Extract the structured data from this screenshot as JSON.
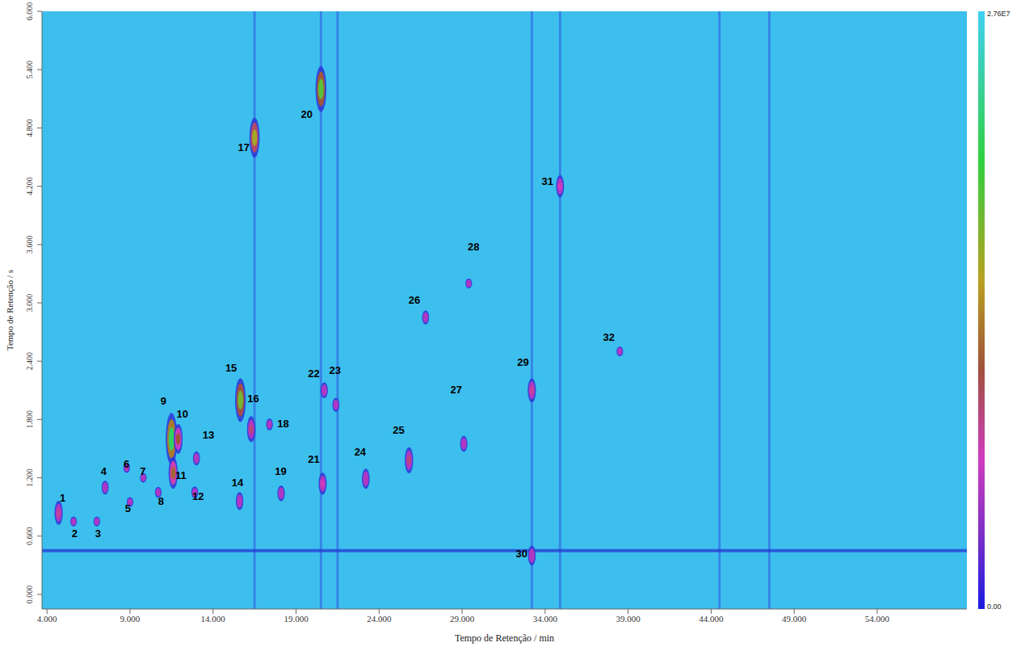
{
  "chart_data": {
    "type": "scatter",
    "x_label": "Tempo de Retenção / min",
    "y_label": "Tempo de Retenção / s",
    "xlim": [
      3.7,
      59.4
    ],
    "ylim": [
      -0.15,
      6.0
    ],
    "xticks": [
      {
        "value": 4,
        "label": "4.000"
      },
      {
        "value": 9,
        "label": "9.000"
      },
      {
        "value": 14,
        "label": "14.000"
      },
      {
        "value": 19,
        "label": "19.000"
      },
      {
        "value": 24,
        "label": "24.000"
      },
      {
        "value": 29,
        "label": "29.000"
      },
      {
        "value": 34,
        "label": "34.000"
      },
      {
        "value": 39,
        "label": "39.000"
      },
      {
        "value": 44,
        "label": "44.000"
      },
      {
        "value": 49,
        "label": "49.000"
      },
      {
        "value": 54,
        "label": "54.000"
      }
    ],
    "yticks": [
      {
        "value": 0,
        "label": "0.000"
      },
      {
        "value": 0.6,
        "label": "0.600"
      },
      {
        "value": 1.2,
        "label": "1.200"
      },
      {
        "value": 1.8,
        "label": "1.800"
      },
      {
        "value": 2.4,
        "label": "2.400"
      },
      {
        "value": 3.0,
        "label": "3.000"
      },
      {
        "value": 3.6,
        "label": "3.600"
      },
      {
        "value": 4.2,
        "label": "4.200"
      },
      {
        "value": 4.8,
        "label": "4.800"
      },
      {
        "value": 5.4,
        "label": "5.400"
      },
      {
        "value": 6.0,
        "label": "6.000"
      }
    ],
    "grid": false,
    "peaks": [
      {
        "label": "1",
        "x": 4.7,
        "y": 0.84,
        "intensity": 8000000,
        "label_x": 4.95,
        "label_y": 0.98
      },
      {
        "label": "2",
        "x": 5.6,
        "y": 0.75,
        "intensity": 1000000,
        "label_x": 5.66,
        "label_y": 0.62
      },
      {
        "label": "3",
        "x": 7.0,
        "y": 0.75,
        "intensity": 1000000,
        "label_x": 7.08,
        "label_y": 0.62
      },
      {
        "label": "4",
        "x": 7.5,
        "y": 1.1,
        "intensity": 3000000,
        "label_x": 7.41,
        "label_y": 1.26
      },
      {
        "label": "5",
        "x": 9.0,
        "y": 0.95,
        "intensity": 1000000,
        "label_x": 8.88,
        "label_y": 0.88
      },
      {
        "label": "6",
        "x": 8.8,
        "y": 1.3,
        "intensity": 800000,
        "label_x": 8.79,
        "label_y": 1.33
      },
      {
        "label": "7",
        "x": 9.8,
        "y": 1.2,
        "intensity": 800000,
        "label_x": 9.78,
        "label_y": 1.26
      },
      {
        "label": "8",
        "x": 10.7,
        "y": 1.05,
        "intensity": 1500000,
        "label_x": 10.87,
        "label_y": 0.95
      },
      {
        "label": "9",
        "x": 11.5,
        "y": 1.6,
        "intensity": 22000000,
        "label_x": 11.01,
        "label_y": 1.98
      },
      {
        "label": "10",
        "x": 11.9,
        "y": 1.6,
        "intensity": 11000000,
        "label_x": 12.15,
        "label_y": 1.85
      },
      {
        "label": "11",
        "x": 11.6,
        "y": 1.25,
        "intensity": 12000000,
        "label_x": 12.06,
        "label_y": 1.22
      },
      {
        "label": "12",
        "x": 12.9,
        "y": 1.05,
        "intensity": 2000000,
        "label_x": 13.1,
        "label_y": 1.0
      },
      {
        "label": "13",
        "x": 13.0,
        "y": 1.4,
        "intensity": 3000000,
        "label_x": 13.72,
        "label_y": 1.63
      },
      {
        "label": "14",
        "x": 15.6,
        "y": 0.96,
        "intensity": 5000000,
        "label_x": 15.47,
        "label_y": 1.14
      },
      {
        "label": "15",
        "x": 15.65,
        "y": 2.0,
        "intensity": 18000000,
        "label_x": 15.09,
        "label_y": 2.32
      },
      {
        "label": "16",
        "x": 16.3,
        "y": 1.7,
        "intensity": 9000000,
        "label_x": 16.42,
        "label_y": 2.01
      },
      {
        "label": "17",
        "x": 16.5,
        "y": 4.7,
        "intensity": 16000000,
        "label_x": 15.85,
        "label_y": 4.59
      },
      {
        "label": "18",
        "x": 17.4,
        "y": 1.75,
        "intensity": 2000000,
        "label_x": 18.22,
        "label_y": 1.75
      },
      {
        "label": "19",
        "x": 18.1,
        "y": 1.04,
        "intensity": 4000000,
        "label_x": 18.08,
        "label_y": 1.26
      },
      {
        "label": "20",
        "x": 20.5,
        "y": 5.2,
        "intensity": 19000000,
        "label_x": 19.64,
        "label_y": 4.93
      },
      {
        "label": "21",
        "x": 20.6,
        "y": 1.14,
        "intensity": 7000000,
        "label_x": 20.07,
        "label_y": 1.38
      },
      {
        "label": "22",
        "x": 20.7,
        "y": 2.1,
        "intensity": 4000000,
        "label_x": 20.07,
        "label_y": 2.26
      },
      {
        "label": "23",
        "x": 21.4,
        "y": 1.95,
        "intensity": 3000000,
        "label_x": 21.35,
        "label_y": 2.3
      },
      {
        "label": "24",
        "x": 23.2,
        "y": 1.19,
        "intensity": 6000000,
        "label_x": 22.86,
        "label_y": 1.46
      },
      {
        "label": "25",
        "x": 25.8,
        "y": 1.38,
        "intensity": 9000000,
        "label_x": 25.18,
        "label_y": 1.68
      },
      {
        "label": "26",
        "x": 26.8,
        "y": 2.85,
        "intensity": 3000000,
        "label_x": 26.13,
        "label_y": 3.02
      },
      {
        "label": "27",
        "x": 29.1,
        "y": 1.55,
        "intensity": 4000000,
        "label_x": 28.64,
        "label_y": 2.1
      },
      {
        "label": "28",
        "x": 29.4,
        "y": 3.2,
        "intensity": 1000000,
        "label_x": 29.69,
        "label_y": 3.57
      },
      {
        "label": "29",
        "x": 33.2,
        "y": 2.1,
        "intensity": 8000000,
        "label_x": 32.67,
        "label_y": 2.38
      },
      {
        "label": "30",
        "x": 33.2,
        "y": 0.4,
        "intensity": 6000000,
        "label_x": 32.58,
        "label_y": 0.41
      },
      {
        "label": "31",
        "x": 34.9,
        "y": 4.2,
        "intensity": 7000000,
        "label_x": 34.14,
        "label_y": 4.24
      },
      {
        "label": "32",
        "x": 38.5,
        "y": 2.5,
        "intensity": 1000000,
        "label_x": 37.84,
        "label_y": 2.64
      }
    ],
    "streaks_x": [
      16.5,
      20.5,
      21.5,
      33.2,
      34.9,
      44.5,
      47.5
    ],
    "band_y": 0.45,
    "colorbar": {
      "range": [
        0,
        27600000
      ],
      "ticks": [
        {
          "value": 0,
          "label": "0.00"
        },
        {
          "value": 27600000,
          "label": "2.76E7"
        }
      ]
    }
  }
}
